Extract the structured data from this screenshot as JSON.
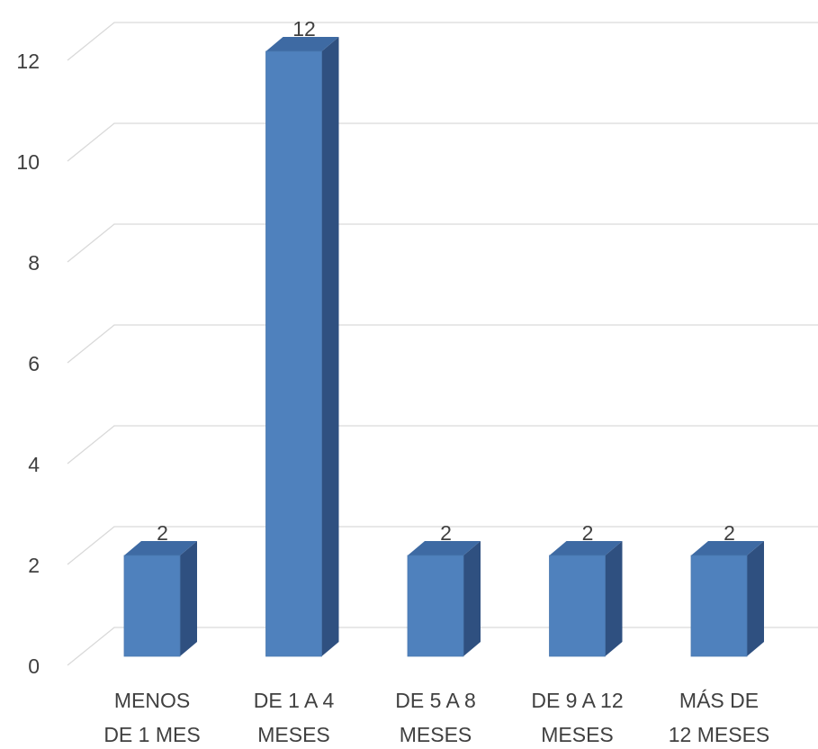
{
  "chart_data": {
    "type": "bar",
    "title": "",
    "xlabel": "",
    "ylabel": "",
    "categories": [
      [
        "MENOS",
        "DE 1 MES"
      ],
      [
        "DE 1 A 4",
        "MESES"
      ],
      [
        "DE 5 A 8",
        "MESES"
      ],
      [
        "DE 9 A 12",
        "MESES"
      ],
      [
        "MÁS DE",
        "12 MESES"
      ]
    ],
    "values": [
      2,
      12,
      2,
      2,
      2
    ],
    "data_labels": [
      "2",
      "12",
      "2",
      "2",
      "2"
    ],
    "ylim": [
      0,
      12
    ],
    "yticks": [
      "0",
      "2",
      "4",
      "6",
      "8",
      "10",
      "12"
    ],
    "grid": true,
    "three_d": true,
    "colors": {
      "bar_front": "#4f81bd",
      "bar_side": "#2f5080",
      "bar_top": "#3e6aa3",
      "grid": "#d9d9d9"
    }
  }
}
